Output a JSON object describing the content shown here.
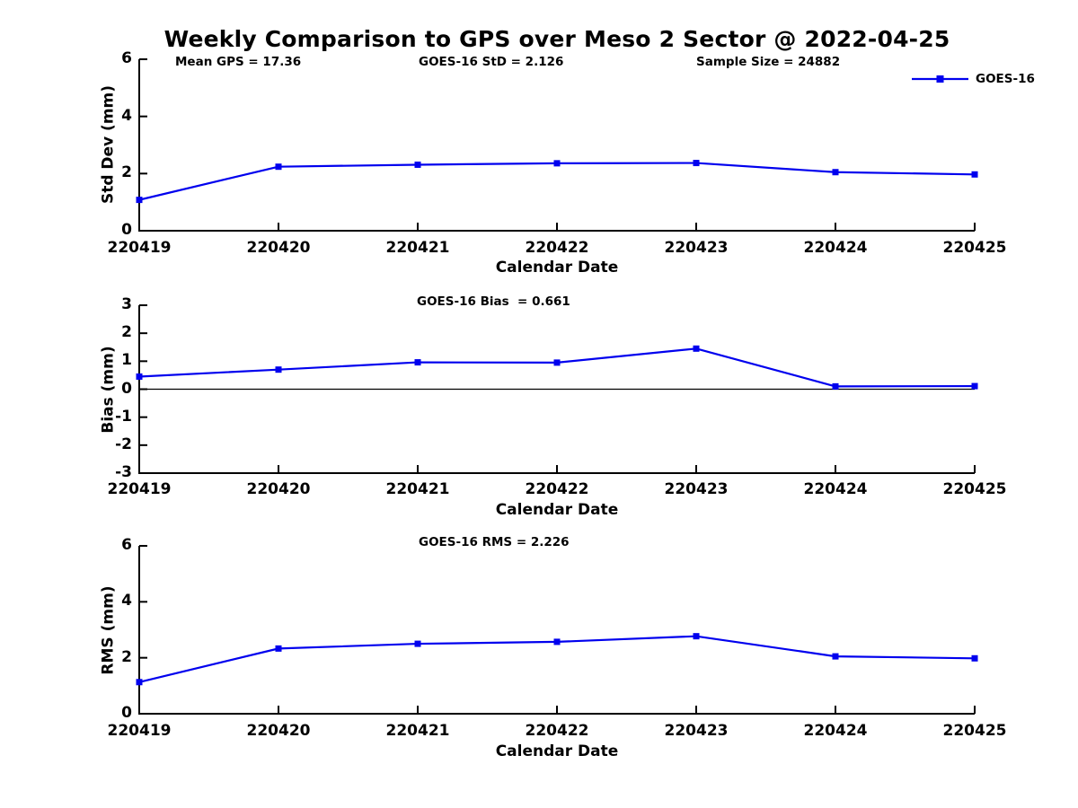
{
  "title": "Weekly Comparison to GPS over Meso 2 Sector @ 2022-04-25",
  "legend": {
    "label": "GOES-16"
  },
  "colors": {
    "series": "#0000EE",
    "axis": "#000000",
    "text": "#000000",
    "background": "#FFFFFF"
  },
  "chart_data": [
    {
      "type": "line",
      "name": "std-dev",
      "annotations": [
        {
          "text": "Mean GPS = 17.36"
        },
        {
          "text": "GOES-16 StD = 2.126"
        },
        {
          "text": "Sample Size = 24882"
        }
      ],
      "ylabel": "Std Dev (mm)",
      "xlabel": "Calendar Date",
      "ylim": [
        0,
        6
      ],
      "yticks": [
        0,
        2,
        4,
        6
      ],
      "grid": false,
      "legend_position": "upper-right",
      "categories": [
        "220419",
        "220420",
        "220421",
        "220422",
        "220423",
        "220424",
        "220425"
      ],
      "series": [
        {
          "name": "GOES-16",
          "marker": "square",
          "values": [
            1.08,
            2.24,
            2.31,
            2.36,
            2.37,
            2.05,
            1.97
          ]
        }
      ]
    },
    {
      "type": "line",
      "name": "bias",
      "annotations": [
        {
          "text": "GOES-16 Bias  = 0.661"
        }
      ],
      "ylabel": "Bias (mm)",
      "xlabel": "Calendar Date",
      "ylim": [
        -3,
        3
      ],
      "yticks": [
        -3,
        -2,
        -1,
        0,
        1,
        2,
        3
      ],
      "zero_line": true,
      "grid": false,
      "categories": [
        "220419",
        "220420",
        "220421",
        "220422",
        "220423",
        "220424",
        "220425"
      ],
      "series": [
        {
          "name": "GOES-16",
          "marker": "square",
          "values": [
            0.45,
            0.7,
            0.96,
            0.95,
            1.45,
            0.1,
            0.11
          ]
        }
      ]
    },
    {
      "type": "line",
      "name": "rms",
      "annotations": [
        {
          "text": "GOES-16 RMS = 2.226"
        }
      ],
      "ylabel": "RMS (mm)",
      "xlabel": "Calendar Date",
      "ylim": [
        0,
        6
      ],
      "yticks": [
        0,
        2,
        4,
        6
      ],
      "grid": false,
      "categories": [
        "220419",
        "220420",
        "220421",
        "220422",
        "220423",
        "220424",
        "220425"
      ],
      "series": [
        {
          "name": "GOES-16",
          "marker": "square",
          "values": [
            1.13,
            2.33,
            2.5,
            2.57,
            2.77,
            2.05,
            1.98
          ]
        }
      ]
    }
  ]
}
